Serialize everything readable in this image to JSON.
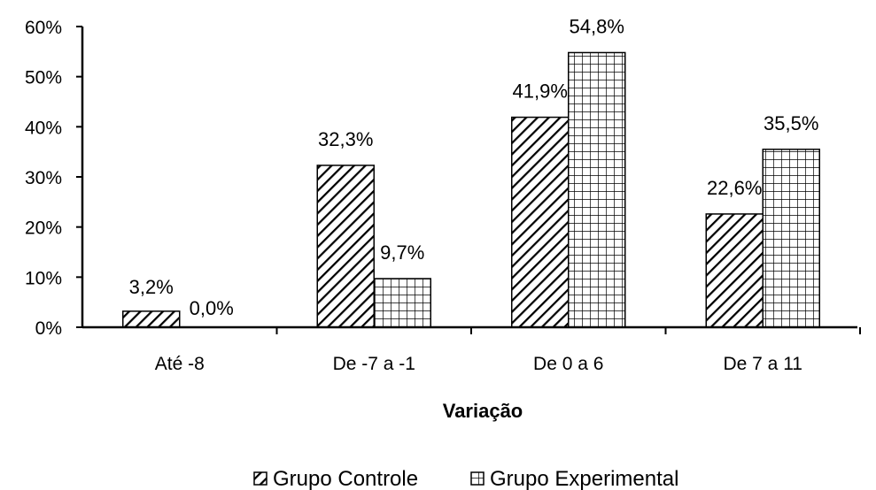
{
  "chart_data": {
    "type": "bar",
    "title": "",
    "xlabel": "Variação",
    "ylabel": "",
    "ylim": [
      0,
      60
    ],
    "yticks": [
      "0%",
      "10%",
      "20%",
      "30%",
      "40%",
      "50%",
      "60%"
    ],
    "categories": [
      "Até -8",
      "De -7 a -1",
      "De 0 a 6",
      "De 7 a 11"
    ],
    "series": [
      {
        "name": "Grupo Controle",
        "pattern": "diagonal-hatch",
        "values": [
          3.2,
          32.3,
          41.9,
          22.6
        ],
        "labels": [
          "3,2%",
          "32,3%",
          "41,9%",
          "22,6%"
        ]
      },
      {
        "name": "Grupo Experimental",
        "pattern": "grid",
        "values": [
          0.0,
          9.7,
          54.8,
          35.5
        ],
        "labels": [
          "0,0%",
          "9,7%",
          "54,8%",
          "35,5%"
        ]
      }
    ],
    "grid": false,
    "legend_position": "bottom-center",
    "colors": {
      "ink": "#000000",
      "background": "#ffffff"
    }
  }
}
